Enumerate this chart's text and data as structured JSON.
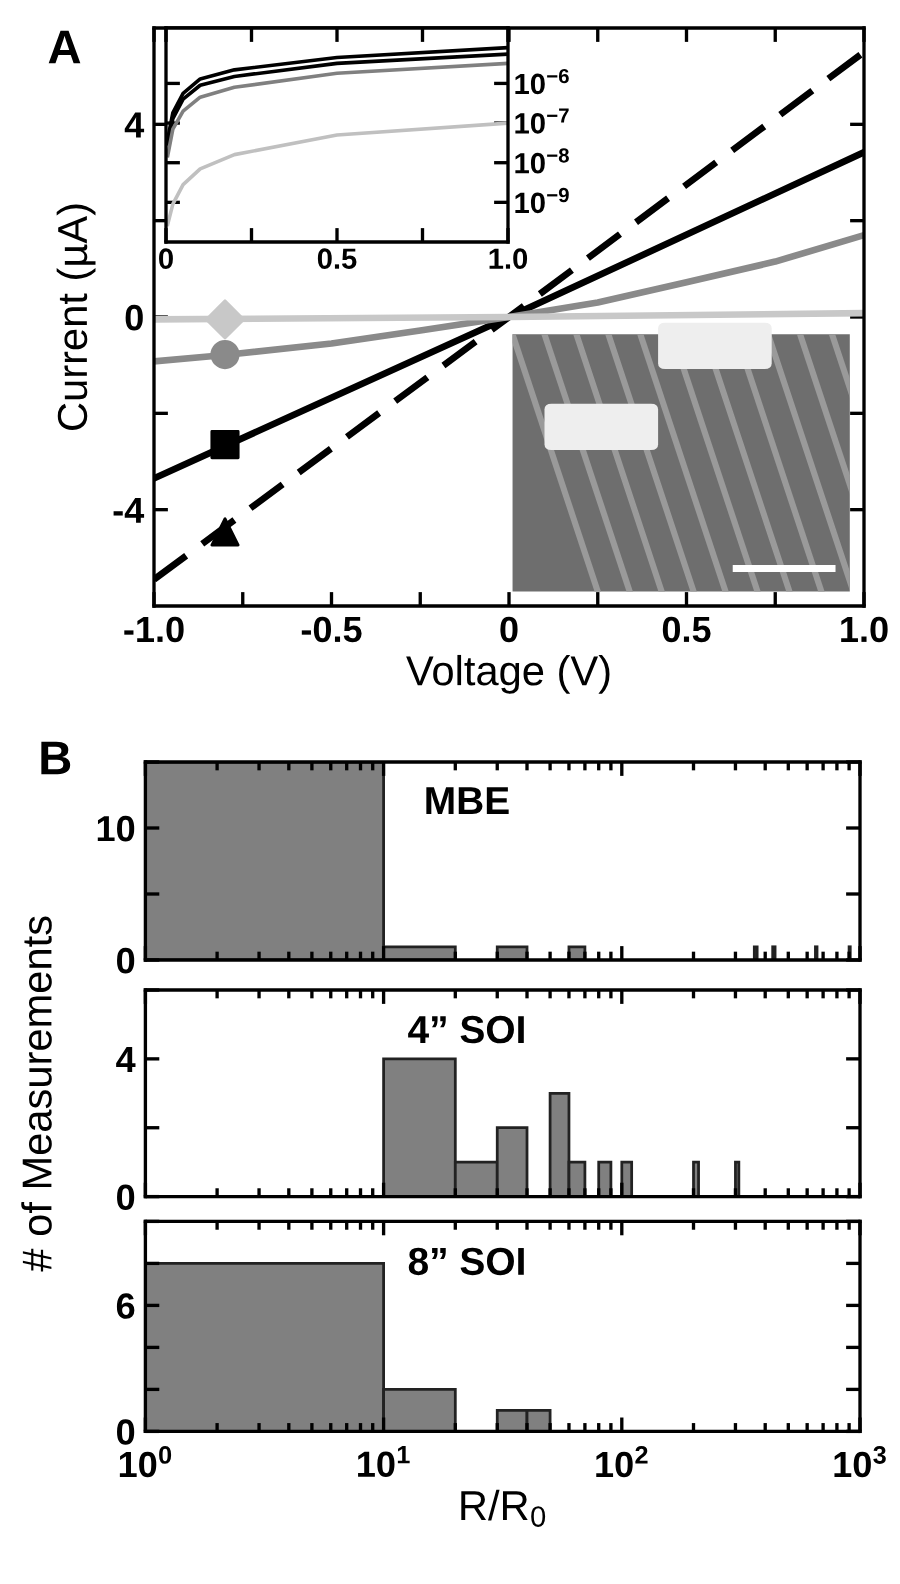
{
  "chart_data": [
    {
      "type": "line",
      "xlabel": "Voltage (V)",
      "ylabel": "Current (µA)",
      "annotations": [
        "A"
      ],
      "xlim": [
        -1,
        1
      ],
      "xticks": [
        {
          "value": -1,
          "label": "-1.0"
        },
        {
          "value": -0.75,
          "label": null
        },
        {
          "value": -0.5,
          "label": "-0.5"
        },
        {
          "value": -0.25,
          "label": null
        },
        0,
        {
          "value": 0.25,
          "label": null
        },
        {
          "value": 0.5,
          "label": "0.5"
        },
        {
          "value": 0.75,
          "label": null
        },
        {
          "value": 1,
          "label": "1.0"
        }
      ],
      "ylim": [
        -6,
        6
      ],
      "yticks": [
        -4,
        {
          "value": -2,
          "label": null
        },
        0,
        {
          "value": 2,
          "label": null
        },
        4
      ],
      "series": [
        {
          "type": "line",
          "color": "#000000",
          "line_style": "dashed",
          "x": [
            -1,
            0,
            1
          ],
          "values": [
            -5.45,
            0,
            5.5
          ]
        },
        {
          "type": "line",
          "color": "#000000",
          "line_style": "solid",
          "x": [
            -1,
            0,
            1
          ],
          "values": [
            -3.35,
            0,
            3.42
          ]
        },
        {
          "type": "line",
          "color": "#8a8a8a",
          "line_style": "solid",
          "x": [
            -1,
            -0.8,
            -0.5,
            -0.25,
            0,
            0.25,
            0.5,
            0.75,
            1
          ],
          "values": [
            -0.92,
            -0.79,
            -0.55,
            -0.28,
            0,
            0.3,
            0.72,
            1.15,
            1.7
          ]
        },
        {
          "type": "line",
          "color": "#c8c8c8",
          "line_style": "solid",
          "x": [
            -1,
            0,
            1
          ],
          "values": [
            -0.05,
            0,
            0.08
          ]
        },
        {
          "type": "scatter",
          "color": "#c8c8c8",
          "marker": "diamond",
          "x": [
            -0.8
          ],
          "values": [
            -0.05
          ]
        },
        {
          "type": "scatter",
          "color": "#8a8a8a",
          "marker": "circle",
          "x": [
            -0.8
          ],
          "values": [
            -0.78
          ]
        },
        {
          "type": "scatter",
          "color": "#000000",
          "marker": "square",
          "x": [
            -0.8
          ],
          "values": [
            -2.65
          ]
        },
        {
          "type": "scatter",
          "color": "#000000",
          "marker": "triangle",
          "x": [
            -0.8
          ],
          "values": [
            -4.46
          ]
        }
      ]
    },
    {
      "type": "line",
      "log": "y",
      "xlim": [
        0,
        1
      ],
      "xticks": [
        0,
        {
          "value": 0.25,
          "label": null
        },
        0.5,
        {
          "value": 0.75,
          "label": null
        },
        {
          "value": 1,
          "label": "1.0"
        }
      ],
      "ylim": [
        1e-10,
        2.5e-05
      ],
      "yticks": [
        {
          "value": 1e-09,
          "label": "10$^{−9}$"
        },
        {
          "value": 1e-08,
          "label": "10$^{−8}$"
        },
        {
          "value": 1e-07,
          "label": "10$^{−7}$"
        },
        {
          "value": 1e-06,
          "label": "10$^{−6}$"
        }
      ],
      "series": [
        {
          "color": "#000000",
          "x": [
            0.005,
            0.02,
            0.05,
            0.1,
            0.2,
            0.5,
            1.0
          ],
          "values": [
            4e-08,
            1.8e-07,
            5.6e-07,
            1.3e-06,
            2.2e-06,
            4.5e-06,
            8e-06
          ]
        },
        {
          "color": "#000000",
          "x": [
            0.005,
            0.02,
            0.05,
            0.1,
            0.2,
            0.5,
            1.0
          ],
          "values": [
            3e-08,
            1.3e-07,
            4e-07,
            9e-07,
            1.5e-06,
            3.2e-06,
            5.5e-06
          ]
        },
        {
          "color": "#808080",
          "x": [
            0.005,
            0.02,
            0.05,
            0.1,
            0.2,
            0.5,
            1.0
          ],
          "values": [
            1.5e-08,
            7e-08,
            2e-07,
            4.5e-07,
            8e-07,
            1.8e-06,
            3.2e-06
          ]
        },
        {
          "color": "#c0c0c0",
          "x": [
            0.005,
            0.02,
            0.05,
            0.1,
            0.2,
            0.5,
            1.0
          ],
          "values": [
            2.8e-10,
            9e-10,
            2.8e-09,
            7e-09,
            1.6e-08,
            5e-08,
            1e-07
          ]
        }
      ]
    },
    {
      "type": "histogram",
      "title": "MBE",
      "annotations": [
        "B"
      ],
      "log": "x",
      "tick_labels": "y",
      "color": "#808080",
      "bins": [
        1,
        10,
        20,
        30,
        40,
        60,
        70,
        360,
        370,
        430,
        440,
        650,
        660,
        900,
        910
      ],
      "values": [
        15,
        1,
        0,
        1,
        0,
        1,
        0,
        1,
        0,
        1,
        0,
        1,
        0,
        1
      ],
      "xlim": [
        1,
        1000
      ],
      "xticks": [
        {
          "value": 1,
          "label": null
        },
        {
          "value": 10,
          "label": null
        },
        {
          "value": 100,
          "label": null
        },
        {
          "value": 1000,
          "label": null
        }
      ],
      "ylim": [
        0,
        15
      ],
      "yticks": [
        0,
        {
          "value": 5,
          "label": null
        },
        10,
        {
          "value": 15,
          "label": null
        }
      ]
    },
    {
      "type": "histogram",
      "title": "4” SOI",
      "ylabel": "# of Measurements",
      "log": "x",
      "tick_labels": "y",
      "color": "#808080",
      "bins": [
        10,
        20,
        30,
        40,
        50,
        60,
        70,
        80,
        90,
        100,
        110,
        200,
        210,
        300,
        310
      ],
      "values": [
        4,
        1,
        2,
        0,
        3,
        1,
        0,
        1,
        0,
        1,
        0,
        1,
        0,
        1
      ],
      "xlim": [
        1,
        1000
      ],
      "xticks": [
        {
          "value": 1,
          "label": null
        },
        {
          "value": 10,
          "label": null
        },
        {
          "value": 100,
          "label": null
        },
        {
          "value": 1000,
          "label": null
        }
      ],
      "ylim": [
        0,
        6
      ],
      "yticks": [
        0,
        {
          "value": 2,
          "label": null
        },
        4,
        {
          "value": 6,
          "label": null
        }
      ]
    },
    {
      "type": "histogram",
      "title": "8” SOI",
      "xlabel": "R/R$_{0}$",
      "log": "x",
      "color": "#808080",
      "bins": [
        1,
        10,
        20,
        30,
        40,
        50
      ],
      "values": [
        8,
        2,
        0,
        1,
        1
      ],
      "xlim": [
        1,
        1000
      ],
      "xticks": [
        {
          "value": 1,
          "label": "10$^{0}$"
        },
        {
          "value": 10,
          "label": "10$^{1}$"
        },
        {
          "value": 100,
          "label": "10$^{2}$"
        },
        {
          "value": 1000,
          "label": "10$^{3}$"
        }
      ],
      "ylim": [
        0,
        10
      ],
      "yticks": [
        0,
        {
          "value": 2,
          "label": null
        },
        {
          "value": 4,
          "label": null
        },
        6,
        {
          "value": 8,
          "label": null
        },
        {
          "value": 10,
          "label": null
        }
      ]
    }
  ]
}
